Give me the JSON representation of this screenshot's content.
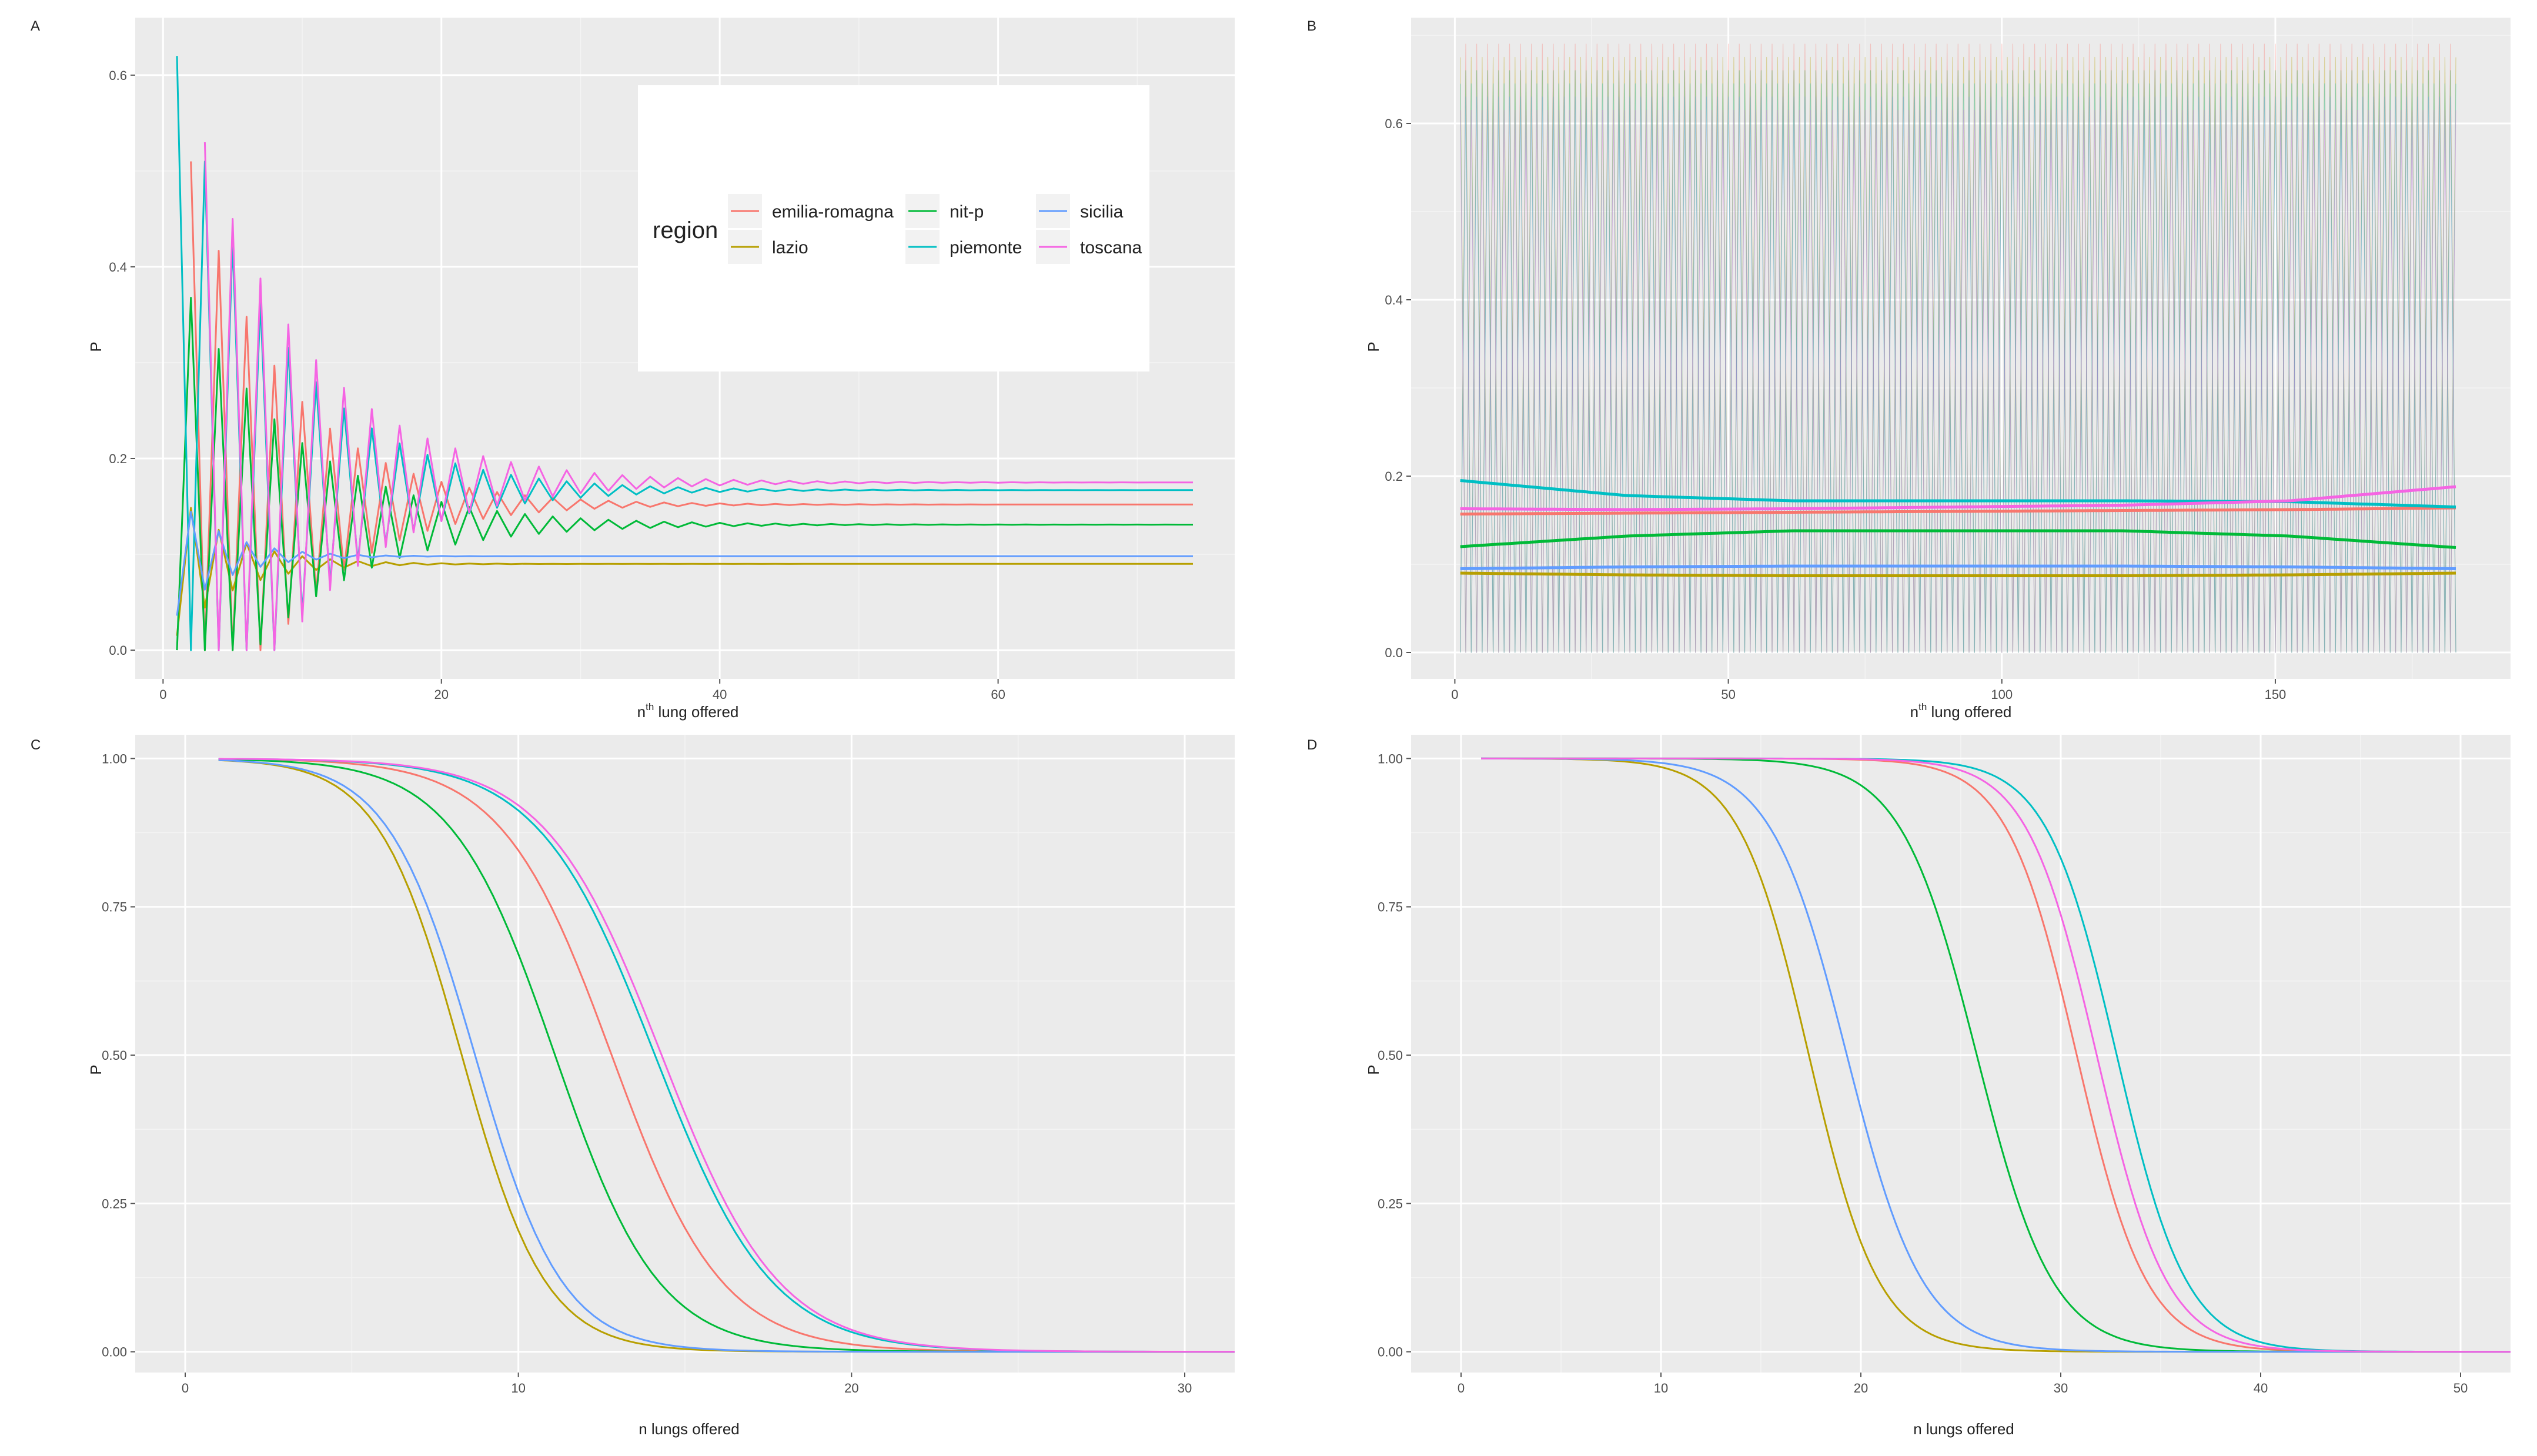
{
  "chart_data": [
    {
      "panel": "A",
      "type": "line",
      "xlabel": "n",
      "xlabel_sup": "th",
      "xlabel_rest": " lung offered",
      "ylabel": "P",
      "xlim": [
        -2,
        77
      ],
      "ylim": [
        -0.03,
        0.66
      ],
      "xticks": [
        0,
        20,
        40,
        60
      ],
      "yticks": [
        0.0,
        0.2,
        0.4,
        0.6
      ],
      "ytick_labels": [
        "0.0",
        "0.2",
        "0.4",
        "0.6"
      ],
      "n": 74,
      "legend": {
        "title": "region",
        "entries": [
          "emilia-romagna",
          "lazio",
          "nit-p",
          "piemonte",
          "sicilia",
          "toscana"
        ]
      },
      "series": [
        {
          "name": "emilia-romagna",
          "p0": 0.51,
          "start": 2,
          "eq": 0.152,
          "decay": 0.86,
          "period": 2.0,
          "up": false
        },
        {
          "name": "lazio",
          "p0": 0.165,
          "start": 1,
          "eq": 0.09,
          "decay": 0.78,
          "period": 2.0,
          "up": true
        },
        {
          "name": "nit-p",
          "p0": 0.4,
          "start": 1,
          "eq": 0.131,
          "decay": 0.88,
          "period": 2.0,
          "up": true
        },
        {
          "name": "piemonte",
          "p0": 0.62,
          "start": 1,
          "eq": 0.167,
          "decay": 0.87,
          "period": 2.0,
          "up": false
        },
        {
          "name": "sicilia",
          "p0": 0.16,
          "start": 1,
          "eq": 0.098,
          "decay": 0.75,
          "period": 2.0,
          "up": true
        },
        {
          "name": "toscana",
          "p0": 0.53,
          "start": 3,
          "eq": 0.175,
          "decay": 0.88,
          "period": 2.0,
          "up": false
        }
      ]
    },
    {
      "panel": "B",
      "type": "line",
      "xlabel": "n",
      "xlabel_sup": "th",
      "xlabel_rest": " lung offered",
      "ylabel": "P",
      "xlim": [
        -8,
        193
      ],
      "ylim": [
        -0.03,
        0.72
      ],
      "xticks": [
        0,
        50,
        100,
        150
      ],
      "yticks": [
        0.0,
        0.2,
        0.4,
        0.6
      ],
      "ytick_labels": [
        "0.0",
        "0.2",
        "0.4",
        "0.6"
      ],
      "n": 183,
      "oscillation_max": 0.69,
      "series": [
        {
          "name": "emilia-romagna",
          "values": [
            0.157,
            0.158,
            0.159,
            0.16,
            0.161,
            0.162,
            0.164
          ]
        },
        {
          "name": "lazio",
          "values": [
            0.09,
            0.088,
            0.087,
            0.087,
            0.087,
            0.088,
            0.09
          ]
        },
        {
          "name": "nit-p",
          "values": [
            0.12,
            0.132,
            0.138,
            0.138,
            0.138,
            0.132,
            0.119
          ]
        },
        {
          "name": "piemonte",
          "values": [
            0.195,
            0.178,
            0.172,
            0.172,
            0.172,
            0.171,
            0.165
          ]
        },
        {
          "name": "sicilia",
          "values": [
            0.095,
            0.097,
            0.098,
            0.098,
            0.098,
            0.097,
            0.095
          ]
        },
        {
          "name": "toscana",
          "values": [
            0.163,
            0.162,
            0.163,
            0.165,
            0.167,
            0.172,
            0.188
          ]
        }
      ]
    },
    {
      "panel": "C",
      "type": "line",
      "xlabel": "n lungs offered",
      "ylabel": "P",
      "xlim": [
        -1.5,
        31.5
      ],
      "ylim": [
        -0.035,
        1.04
      ],
      "xticks": [
        0,
        10,
        20,
        30
      ],
      "yticks": [
        0.0,
        0.25,
        0.5,
        0.75,
        1.0
      ],
      "ytick_labels": [
        "0.00",
        "0.25",
        "0.50",
        "0.75",
        "1.00"
      ],
      "x_start": 1,
      "x_end": 31.5,
      "series": [
        {
          "name": "emilia-romagna",
          "x50": 12.8,
          "s": 1.65
        },
        {
          "name": "lazio",
          "x50": 8.3,
          "s": 1.25
        },
        {
          "name": "nit-p",
          "x50": 11.1,
          "s": 1.55
        },
        {
          "name": "piemonte",
          "x50": 14.1,
          "s": 1.75
        },
        {
          "name": "sicilia",
          "x50": 8.7,
          "s": 1.3
        },
        {
          "name": "toscana",
          "x50": 14.3,
          "s": 1.75
        }
      ]
    },
    {
      "panel": "D",
      "type": "line",
      "xlabel": "n lungs offered",
      "ylabel": "P",
      "xlim": [
        -2.5,
        52.5
      ],
      "ylim": [
        -0.035,
        1.04
      ],
      "xticks": [
        0,
        10,
        20,
        30,
        40,
        50
      ],
      "yticks": [
        0.0,
        0.25,
        0.5,
        0.75,
        1.0
      ],
      "ytick_labels": [
        "0.00",
        "0.25",
        "0.50",
        "0.75",
        "1.00"
      ],
      "x_start": 1,
      "x_end": 52.5,
      "series": [
        {
          "name": "emilia-romagna",
          "x50": 30.8,
          "s": 1.75
        },
        {
          "name": "lazio",
          "x50": 17.4,
          "s": 1.75
        },
        {
          "name": "nit-p",
          "x50": 25.8,
          "s": 1.9
        },
        {
          "name": "piemonte",
          "x50": 32.8,
          "s": 1.75
        },
        {
          "name": "sicilia",
          "x50": 19.3,
          "s": 1.9
        },
        {
          "name": "toscana",
          "x50": 31.8,
          "s": 1.75
        }
      ]
    }
  ],
  "colors": {
    "emilia-romagna": "#F8766D",
    "lazio": "#B79F00",
    "nit-p": "#00BA38",
    "piemonte": "#00BFC4",
    "sicilia": "#619CFF",
    "toscana": "#F564E3",
    "panel_bg": "#EBEBEB",
    "grid_major": "#FFFFFF",
    "grid_minor": "#F4F4F4"
  }
}
